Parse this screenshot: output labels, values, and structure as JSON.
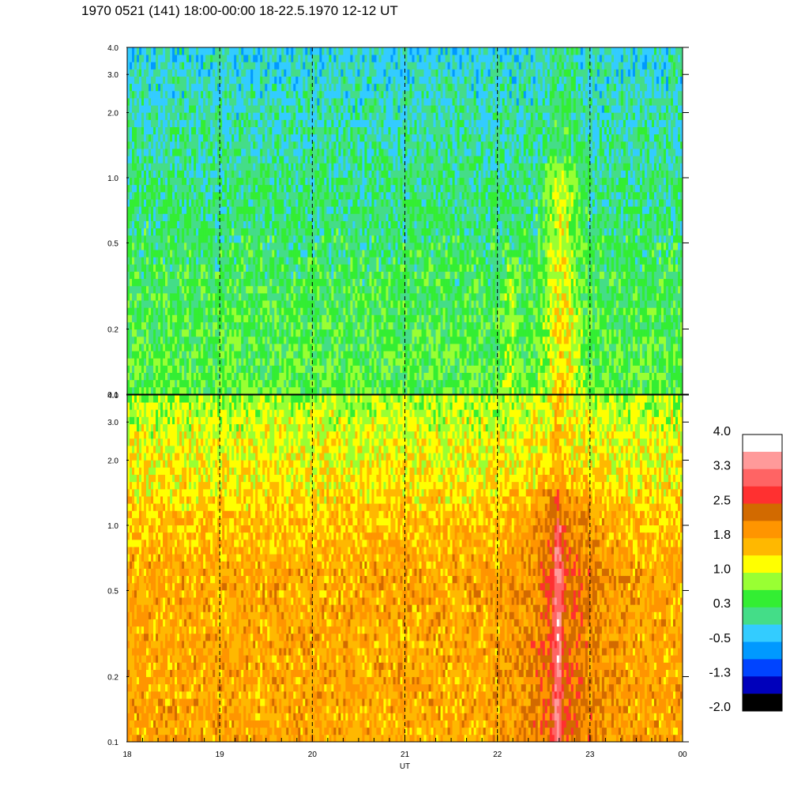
{
  "title": "1970 0521 (141) 18:00-00:00 18-22.5.1970  12-12 UT",
  "chart_data": [
    {
      "type": "heatmap",
      "panel": "top",
      "x_range": [
        18,
        24
      ],
      "y_range": [
        0.1,
        4.0
      ],
      "y_scale": "log",
      "x_ticks": [
        "18",
        "19",
        "20",
        "21",
        "22",
        "23",
        "00"
      ],
      "x_tick_values": [
        18,
        19,
        20,
        21,
        22,
        23,
        24
      ],
      "y_ticks": [
        "4.0",
        "3.0",
        "2.0",
        "1.0",
        "0.5",
        "0.2",
        "0.1"
      ],
      "y_tick_values": [
        4.0,
        3.0,
        2.0,
        1.0,
        0.5,
        0.2,
        0.1
      ],
      "dominant_levels": "-0.5 to 1.0 (green, with blue at higher frequencies, yellow/orange near 22.6-22.8 UT)",
      "grid": "dashed vertical lines at each hour"
    },
    {
      "type": "heatmap",
      "panel": "bottom",
      "x_range": [
        18,
        24
      ],
      "y_range": [
        0.1,
        4.0
      ],
      "y_scale": "log",
      "x_ticks": [
        "18",
        "19",
        "20",
        "21",
        "22",
        "23",
        "00"
      ],
      "x_tick_values": [
        18,
        19,
        20,
        21,
        22,
        23,
        24
      ],
      "y_ticks": [
        "4.0",
        "3.0",
        "2.0",
        "1.0",
        "0.5",
        "0.2",
        "0.1"
      ],
      "y_tick_values": [
        4.0,
        3.0,
        2.0,
        1.0,
        0.5,
        0.2,
        0.1
      ],
      "xlabel": "UT",
      "dominant_levels": "1.0 to 2.5 (yellow/orange, red streak near 22.6-22.7 UT)",
      "grid": "dashed vertical lines at each hour"
    }
  ],
  "colorbar": {
    "labels": [
      "4.0",
      "3.3",
      "2.5",
      "1.8",
      "1.0",
      "0.3",
      "-0.5",
      "-1.3",
      "-2.0"
    ],
    "colors": [
      "#ffffff",
      "#ff9a9a",
      "#ff6464",
      "#ff3030",
      "#d26a00",
      "#ff9500",
      "#ffb800",
      "#ffff00",
      "#99ff33",
      "#33ee33",
      "#44dd88",
      "#33ccff",
      "#0099ff",
      "#0044ff",
      "#0000bb",
      "#000000"
    ]
  }
}
